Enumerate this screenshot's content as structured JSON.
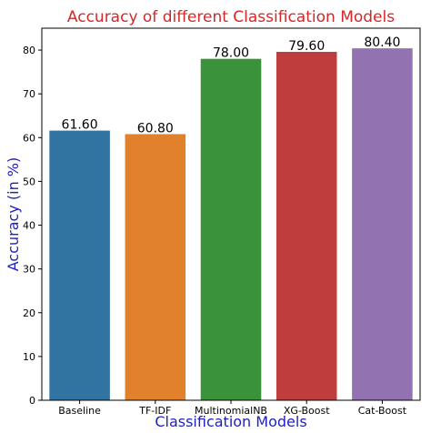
{
  "chart_data": {
    "type": "bar",
    "title": "Accuracy of different Classification Models",
    "xlabel": "Classification Models",
    "ylabel": "Accuracy (in %)",
    "categories": [
      "Baseline",
      "TF-IDF",
      "MultinomialNB",
      "XG-Boost",
      "Cat-Boost"
    ],
    "values": [
      61.6,
      60.8,
      78.0,
      79.6,
      80.4
    ],
    "data_labels": [
      "61.60",
      "60.80",
      "78.00",
      "79.60",
      "80.40"
    ],
    "ylim": [
      0,
      85
    ],
    "yticks": [
      0,
      10,
      20,
      30,
      40,
      50,
      60,
      70,
      80
    ],
    "colors": [
      "#3274a1",
      "#e1812c",
      "#3a923a",
      "#c03d3e",
      "#9372b2"
    ],
    "title_color": "#d62728",
    "label_color": "#1f1fbf",
    "grid": false,
    "legend": "none"
  }
}
